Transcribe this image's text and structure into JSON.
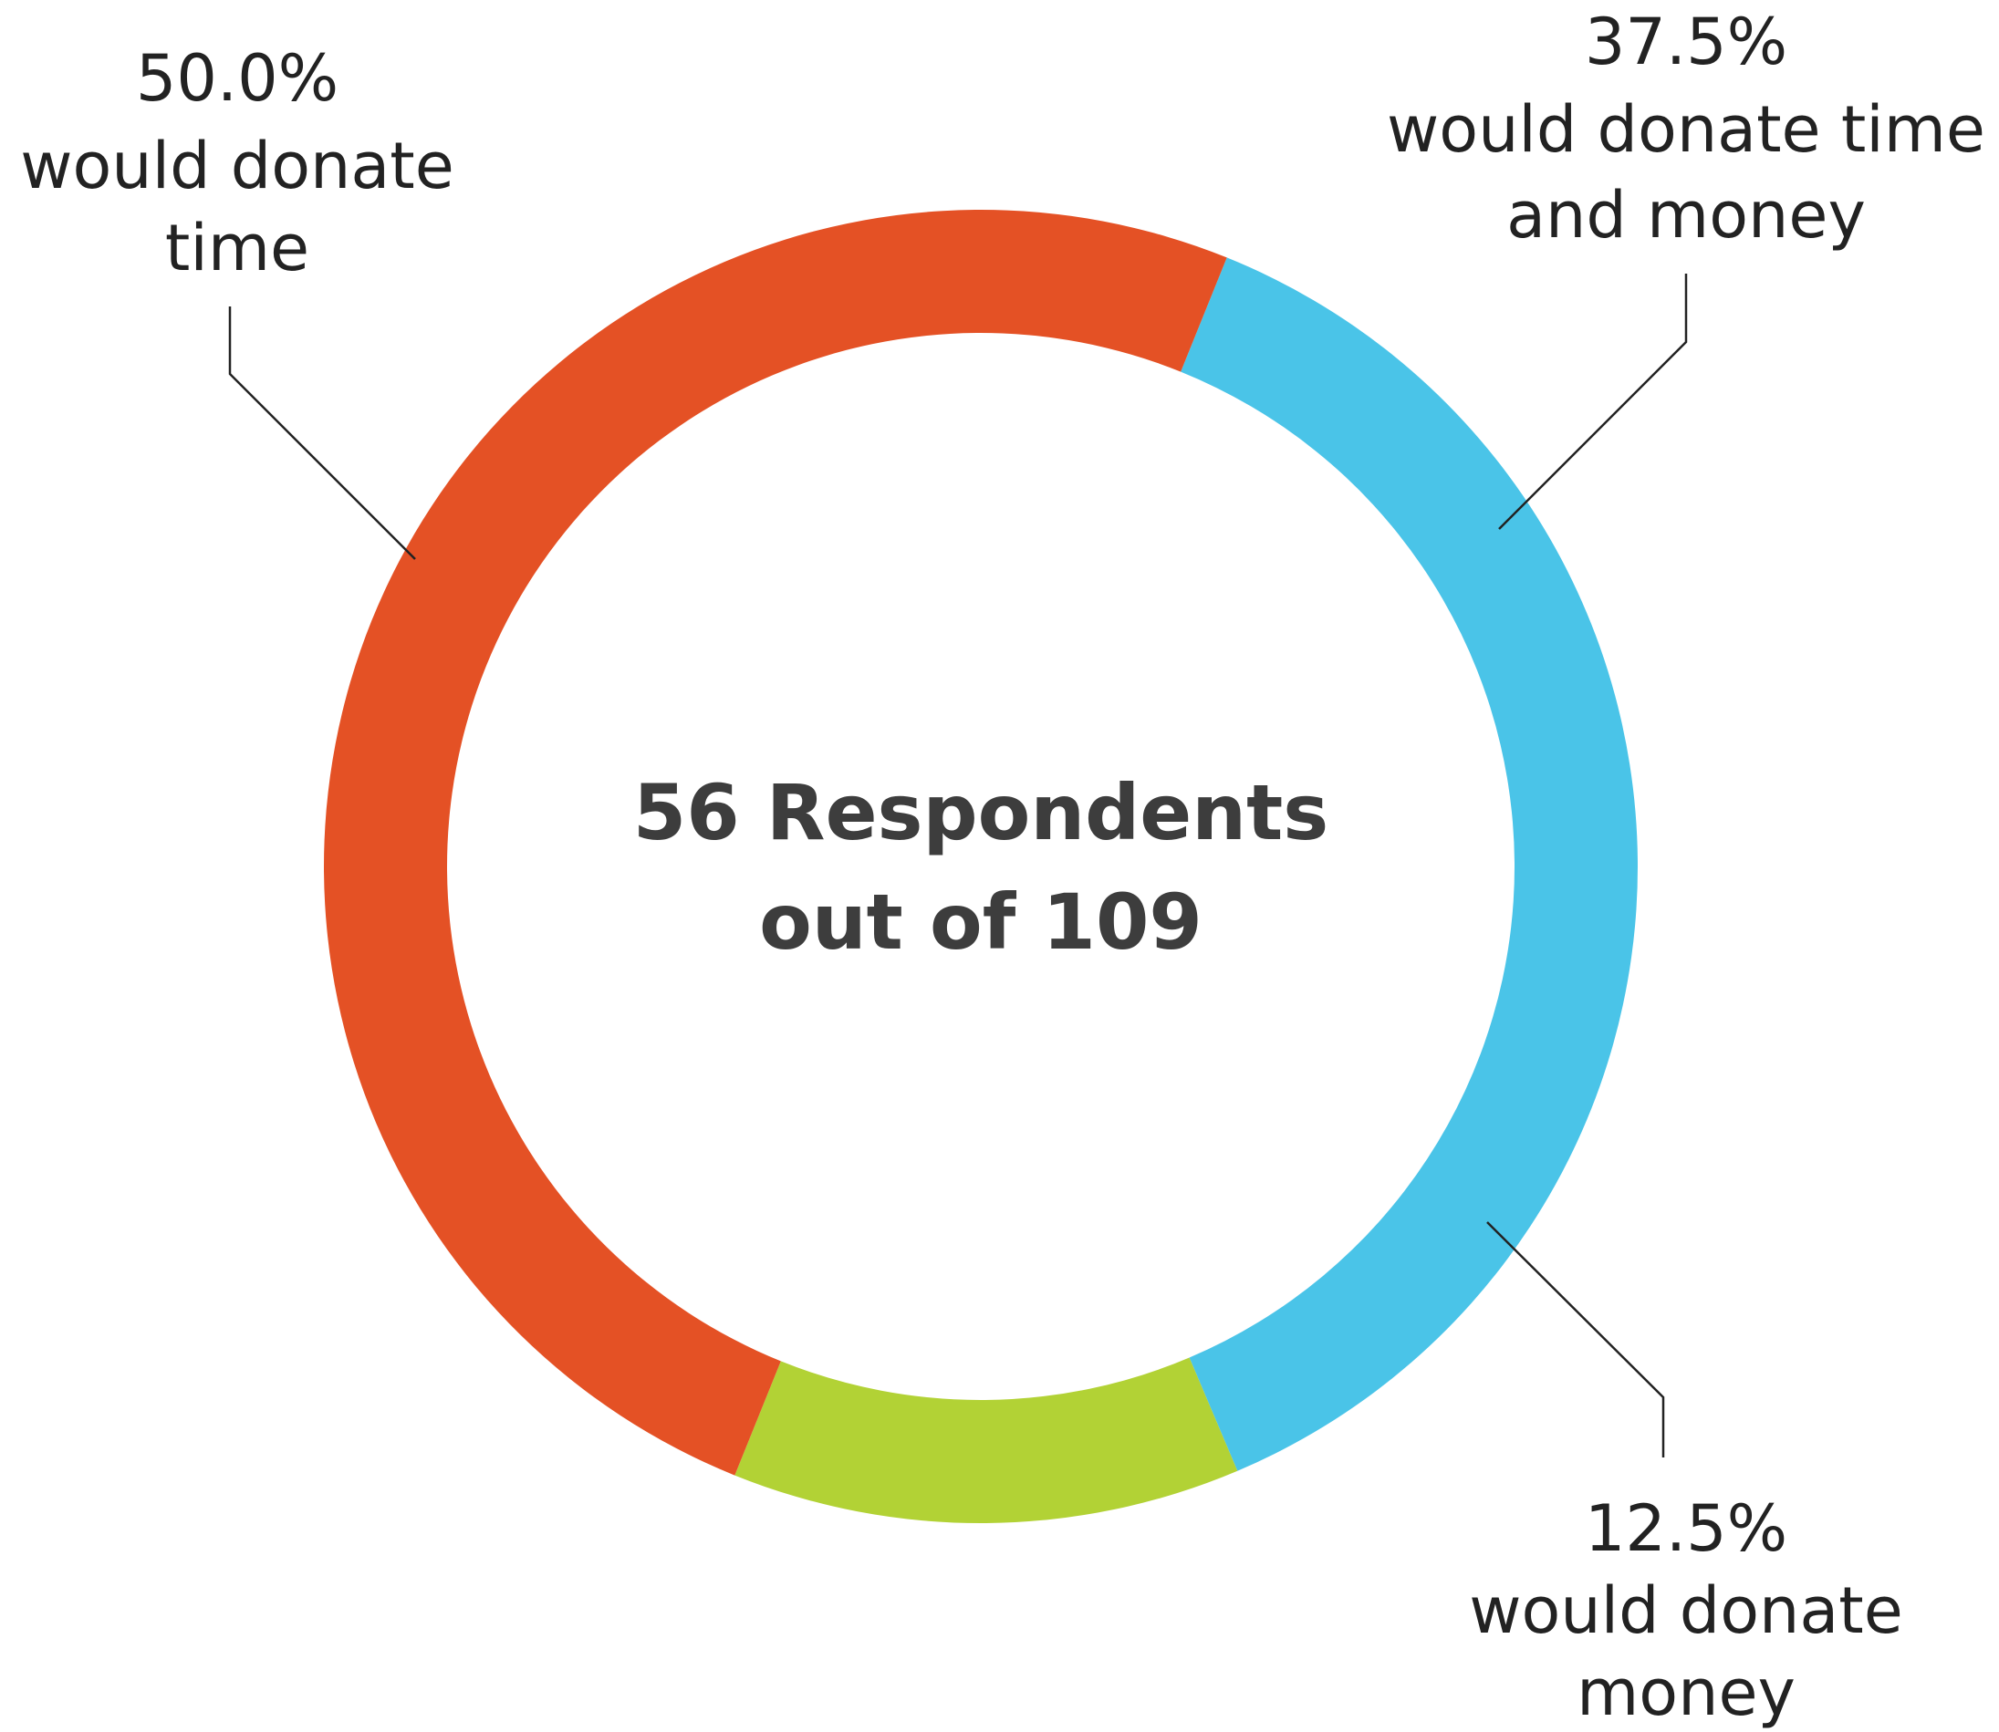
{
  "chart_data": {
    "type": "pie",
    "donut": true,
    "categories": [
      "would donate time and money",
      "would donate money",
      "would donate time"
    ],
    "values": [
      37.5,
      12.5,
      50.0
    ],
    "colors": [
      "#4ac4e8",
      "#b2d235",
      "#e45125"
    ],
    "labels": [
      {
        "percent": "37.5%",
        "lines": [
          "would donate time",
          "and money"
        ]
      },
      {
        "percent": "12.5%",
        "lines": [
          "would donate",
          "money"
        ]
      },
      {
        "percent": "50.0%",
        "lines": [
          "would donate",
          "time"
        ]
      }
    ],
    "center": {
      "line1": "56 Respondents",
      "line2": "out of 109"
    },
    "start_angle_deg": 22,
    "title": "",
    "legend": "none"
  }
}
